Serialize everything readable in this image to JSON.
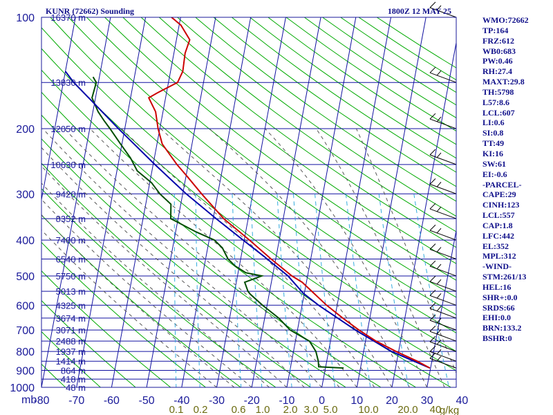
{
  "header": {
    "station": "KUNR (72662) Sounding",
    "valid": "1800Z 12 MAY 25"
  },
  "indices": [
    "WMO:72662",
    "TP:164",
    "FRZ:612",
    "WB0:683",
    "PW:0.46",
    "RH:27.4",
    "MAXT:29.8",
    "TH:5798",
    "L57:8.6",
    "LCL:607",
    "LI:0.6",
    "SI:0.8",
    "TT:49",
    "KI:16",
    "SW:61",
    "EI:-0.6",
    "-PARCEL-",
    "CAPE:29",
    "CINH:123",
    "LCL:557",
    "CAP:1.8",
    "LFC:442",
    "EL:352",
    "MPL:312",
    "-WIND-",
    "STM:261/13",
    "HEL:16",
    "SHR+:0.0",
    "SRDS:66",
    "EHI:0.0",
    "BRN:133.2",
    "BSHR:0"
  ],
  "chart_data": {
    "type": "line",
    "chart_kind": "skew-T log-P sounding",
    "colors": {
      "frame": "#1a1a9a",
      "grid": "#1010a0",
      "dry_adiabat": "#00aa00",
      "moist_adiabat": "#555555",
      "mixing_ratio": "#33aadd",
      "temperature": "#cc0000",
      "dewpoint": "#004d00",
      "parcel": "#0000aa",
      "wind_barb": "#000000"
    },
    "pressure_levels": [
      100,
      200,
      300,
      400,
      500,
      600,
      700,
      800,
      900,
      1000
    ],
    "pressure_labels": [
      "100",
      "200",
      "300",
      "400",
      "500",
      "600",
      "700",
      "800",
      "900",
      "1000"
    ],
    "pressure_unit": "mb",
    "temperature_ticks": [
      -80,
      -70,
      -60,
      -50,
      -40,
      -30,
      -20,
      -10,
      0,
      10,
      20,
      30,
      40
    ],
    "temperature_labels": [
      "-80",
      "-70",
      "-60",
      "-50",
      "-40",
      "-30",
      "-20",
      "-10",
      "0",
      "10",
      "20",
      "30",
      "40"
    ],
    "mixing_ratio_labels": [
      "0.1",
      "0.2",
      "0.6",
      "1.0",
      "2.0",
      "3.0",
      "5.0",
      "10.0",
      "20.0",
      "40"
    ],
    "mixing_ratio_unit": "g/kg",
    "mixing_ratio_values": [
      0.1,
      0.2,
      0.6,
      1.0,
      2.0,
      3.0,
      5.0,
      10.0,
      20.0,
      40.0
    ],
    "height_labels": [
      {
        "p": 100,
        "text": "16370 m"
      },
      {
        "p": 150,
        "text": "13830 m"
      },
      {
        "p": 200,
        "text": "12050 m"
      },
      {
        "p": 250,
        "text": "10630 m"
      },
      {
        "p": 300,
        "text": "9420 m"
      },
      {
        "p": 350,
        "text": "8352 m"
      },
      {
        "p": 400,
        "text": "7400 m"
      },
      {
        "p": 450,
        "text": "6540 m"
      },
      {
        "p": 500,
        "text": "5750 m"
      },
      {
        "p": 550,
        "text": "5013 m"
      },
      {
        "p": 600,
        "text": "4325 m"
      },
      {
        "p": 650,
        "text": "3674 m"
      },
      {
        "p": 700,
        "text": "3071 m"
      },
      {
        "p": 750,
        "text": "2488 m"
      },
      {
        "p": 800,
        "text": "1937 m"
      },
      {
        "p": 850,
        "text": "1414 m"
      },
      {
        "p": 900,
        "text": "864 m"
      },
      {
        "p": 950,
        "text": "418 m"
      },
      {
        "p": 1000,
        "text": "48 m"
      }
    ],
    "temperature_profile": [
      [
        887,
        29.8
      ],
      [
        850,
        25.8
      ],
      [
        800,
        19.3
      ],
      [
        750,
        13.0
      ],
      [
        700,
        7.5
      ],
      [
        650,
        2.3
      ],
      [
        600,
        -3.0
      ],
      [
        550,
        -8.0
      ],
      [
        520,
        -11.2
      ],
      [
        500,
        -14.5
      ],
      [
        450,
        -21.3
      ],
      [
        400,
        -28.5
      ],
      [
        350,
        -37.0
      ],
      [
        300,
        -44.6
      ],
      [
        270,
        -49.5
      ],
      [
        250,
        -53.2
      ],
      [
        220,
        -58.5
      ],
      [
        200,
        -60.5
      ],
      [
        180,
        -62.1
      ],
      [
        165,
        -64.8
      ],
      [
        160,
        -62.6
      ],
      [
        150,
        -57.4
      ],
      [
        140,
        -56.5
      ],
      [
        125,
        -56.8
      ],
      [
        115,
        -56.2
      ],
      [
        105,
        -59.5
      ],
      [
        100,
        -62.6
      ]
    ],
    "dewpoint_profile": [
      [
        887,
        5.2
      ],
      [
        880,
        -2.0
      ],
      [
        850,
        -2.4
      ],
      [
        800,
        -3.6
      ],
      [
        750,
        -6.0
      ],
      [
        700,
        -12.1
      ],
      [
        650,
        -16.0
      ],
      [
        600,
        -21.3
      ],
      [
        560,
        -25.4
      ],
      [
        550,
        -26.2
      ],
      [
        520,
        -27.6
      ],
      [
        500,
        -23.1
      ],
      [
        490,
        -27.8
      ],
      [
        470,
        -31.2
      ],
      [
        450,
        -33.6
      ],
      [
        420,
        -35.8
      ],
      [
        400,
        -38.5
      ],
      [
        380,
        -44.2
      ],
      [
        350,
        -52.1
      ],
      [
        320,
        -52.8
      ],
      [
        300,
        -56.5
      ],
      [
        280,
        -59.5
      ],
      [
        260,
        -64.2
      ],
      [
        240,
        -66.8
      ],
      [
        220,
        -70.4
      ],
      [
        200,
        -74.2
      ],
      [
        190,
        -76.4
      ],
      [
        180,
        -78.5
      ],
      [
        165,
        -81.0
      ],
      [
        150,
        -80.6
      ],
      [
        145,
        -81.8
      ]
    ],
    "parcel_profile": [
      [
        887,
        29.8
      ],
      [
        800,
        18.0
      ],
      [
        700,
        6.5
      ],
      [
        600,
        -5.3
      ],
      [
        557,
        -10.3
      ],
      [
        500,
        -15.6
      ],
      [
        442,
        -23.6
      ],
      [
        400,
        -30.3
      ],
      [
        352,
        -38.8
      ],
      [
        312,
        -46.5
      ],
      [
        300,
        -49.0
      ],
      [
        250,
        -59.5
      ],
      [
        200,
        -71.8
      ],
      [
        150,
        -87.0
      ],
      [
        140,
        -90.0
      ]
    ],
    "wind_levels": [
      887,
      850,
      800,
      750,
      700,
      650,
      600,
      550,
      500,
      450,
      400,
      350,
      300,
      250,
      200,
      150,
      100
    ]
  }
}
